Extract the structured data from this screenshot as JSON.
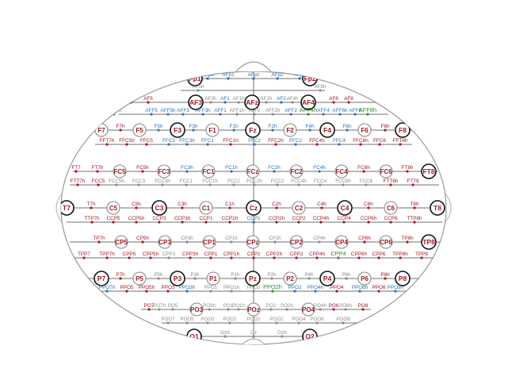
{
  "colors": {
    "primary": "#a01822",
    "secondary": "#2a73b8",
    "tertiary": "#8a8a8a",
    "highlight": "#2f8a2f",
    "line": "#707070",
    "ring": "#111111"
  },
  "rows": [
    {
      "id": "fp",
      "y": 99,
      "line": [
        236,
        396
      ],
      "e": [
        [
          "Fp1",
          246,
          "p1"
        ],
        [
          "AFp3",
          262,
          "b"
        ],
        [
          "AFp1",
          288,
          "b"
        ],
        [
          "AFpz",
          320,
          "b"
        ],
        [
          "AFp2",
          350,
          "b"
        ],
        [
          "AFp4",
          378,
          "b"
        ],
        [
          "Fp2",
          391,
          "p1"
        ]
      ]
    },
    {
      "id": "af5",
      "y": 114,
      "line": [
        228,
        410
      ],
      "e": [
        [
          "AF5h",
          250,
          "g"
        ],
        [
          "AF6h",
          404,
          "g"
        ]
      ]
    },
    {
      "id": "af",
      "y": 129,
      "line": [
        152,
        490
      ],
      "e": [
        [
          "AF7",
          165,
          "r"
        ],
        [
          "AF5",
          187,
          "r"
        ],
        [
          "AF3",
          247,
          "p1"
        ],
        [
          "AF3h",
          266,
          "g"
        ],
        [
          "AF1",
          284,
          "b"
        ],
        [
          "AF1h",
          301,
          "g"
        ],
        [
          "AFz",
          318,
          "p1"
        ],
        [
          "AF2h",
          336,
          "g"
        ],
        [
          "AF2",
          355,
          "b"
        ],
        [
          "AF4h",
          369,
          "g"
        ],
        [
          "AF4",
          389,
          "p1"
        ],
        [
          "AF6",
          421,
          "r"
        ],
        [
          "AF8",
          440,
          "r"
        ]
      ]
    },
    {
      "id": "aff",
      "y": 144,
      "line": [
        150,
        490
      ],
      "e": [
        [
          "AFF7h",
          144,
          "g"
        ],
        [
          "AFF5",
          191,
          "b"
        ],
        [
          "AFF5h",
          212,
          "b"
        ],
        [
          "AFF3",
          231,
          "b"
        ],
        [
          "AFF3h",
          256,
          "b"
        ],
        [
          "AFF1",
          278,
          "b"
        ],
        [
          "AFF1h",
          299,
          "g"
        ],
        [
          "AFFz",
          321,
          "g"
        ],
        [
          "AFF2h",
          344,
          "g"
        ],
        [
          "AFF2",
          367,
          "b"
        ],
        [
          "AFF4h",
          389,
          "h"
        ],
        [
          "AFF4",
          408,
          "b"
        ],
        [
          "AFF6h",
          429,
          "b"
        ],
        [
          "AFF6",
          448,
          "b"
        ],
        [
          "AFF8h",
          464,
          "h"
        ]
      ]
    },
    {
      "id": "f",
      "y": 164,
      "line": [
        112,
        525
      ],
      "e": [
        [
          "F7",
          128,
          "p2"
        ],
        [
          "F7h",
          152,
          "r"
        ],
        [
          "F5",
          176,
          "p2"
        ],
        [
          "F5h",
          200,
          "b"
        ],
        [
          "F3",
          224,
          "p1"
        ],
        [
          "F3h",
          244,
          "b"
        ],
        [
          "F1",
          268,
          "p2"
        ],
        [
          "F1h",
          295,
          "b"
        ],
        [
          "Fz",
          319,
          "p1"
        ],
        [
          "F2h",
          344,
          "b"
        ],
        [
          "F2",
          366,
          "p2"
        ],
        [
          "F4h",
          391,
          "b"
        ],
        [
          "F4",
          413,
          "p1"
        ],
        [
          "F6h",
          438,
          "b"
        ],
        [
          "F6",
          460,
          "p2"
        ],
        [
          "F8h",
          486,
          "r"
        ],
        [
          "F8",
          508,
          "p1"
        ]
      ]
    },
    {
      "id": "fft",
      "y": 182,
      "line": [
        120,
        520
      ],
      "e": [
        [
          "FFT7h",
          135,
          "r"
        ],
        [
          "FFC5h",
          160,
          "r"
        ],
        [
          "FFC5",
          185,
          "r"
        ],
        [
          "FFC3",
          213,
          "b"
        ],
        [
          "FFC3h",
          236,
          "b"
        ],
        [
          "FFC1",
          262,
          "b"
        ],
        [
          "FFC1h",
          291,
          "r"
        ],
        [
          "FFCz",
          321,
          "b"
        ],
        [
          "FFC2h",
          348,
          "r"
        ],
        [
          "FFC2",
          373,
          "b"
        ],
        [
          "FFC4h",
          400,
          "r"
        ],
        [
          "FFC4",
          428,
          "b"
        ],
        [
          "FFC6h",
          455,
          "r"
        ],
        [
          "FFC6",
          479,
          "r"
        ],
        [
          "FFT8h",
          505,
          "r"
        ]
      ]
    },
    {
      "id": "fc",
      "y": 216,
      "line": [
        92,
        552
      ],
      "e": [
        [
          "FT7",
          96,
          "r"
        ],
        [
          "FT7h",
          123,
          "r"
        ],
        [
          "FC5",
          151,
          "p2"
        ],
        [
          "FC5h",
          180,
          "r"
        ],
        [
          "FC3",
          207,
          "p2"
        ],
        [
          "FC3h",
          236,
          "b"
        ],
        [
          "FC1",
          263,
          "p2"
        ],
        [
          "FC1h",
          292,
          "b"
        ],
        [
          "FCz",
          319,
          "p2"
        ],
        [
          "FC2h",
          346,
          "b"
        ],
        [
          "FC2",
          374,
          "p2"
        ],
        [
          "FC4h",
          403,
          "b"
        ],
        [
          "FC4",
          431,
          "p2"
        ],
        [
          "FC6h",
          459,
          "r"
        ],
        [
          "FC6",
          487,
          "p2"
        ],
        [
          "FT8h",
          514,
          "r"
        ],
        [
          "FT8",
          541,
          "p1"
        ]
      ]
    },
    {
      "id": "fcc",
      "y": 233,
      "line": [
        88,
        554
      ],
      "e": [
        [
          "FTT7h",
          98,
          "r"
        ],
        [
          "FCC5",
          124,
          "r"
        ],
        [
          "FCC5h",
          147,
          "g"
        ],
        [
          "FCC3",
          175,
          "g"
        ],
        [
          "FCC3h",
          205,
          "g"
        ],
        [
          "FCC1",
          235,
          "g"
        ],
        [
          "FCC1h",
          265,
          "g"
        ],
        [
          "FCCz",
          295,
          "g"
        ],
        [
          "FCC2h",
          321,
          "g"
        ],
        [
          "FCC2",
          350,
          "g"
        ],
        [
          "FCC4h",
          377,
          "g"
        ],
        [
          "FCC4",
          404,
          "g"
        ],
        [
          "FCC6h",
          433,
          "g"
        ],
        [
          "FCC6",
          462,
          "g"
        ],
        [
          "FTT8h",
          493,
          "r"
        ],
        [
          "FTT8",
          521,
          "r"
        ]
      ]
    },
    {
      "id": "c",
      "y": 262,
      "line": [
        80,
        562
      ],
      "e": [
        [
          "T7",
          84,
          "p1"
        ],
        [
          "T7h",
          115,
          "r"
        ],
        [
          "C5",
          143,
          "p2"
        ],
        [
          "C5h",
          172,
          "r"
        ],
        [
          "C3",
          201,
          "p1"
        ],
        [
          "C3h",
          230,
          "r"
        ],
        [
          "C1",
          260,
          "p2"
        ],
        [
          "C1h",
          290,
          "r"
        ],
        [
          "Cz",
          320,
          "p1"
        ],
        [
          "C2h",
          349,
          "r"
        ],
        [
          "C2",
          377,
          "p2"
        ],
        [
          "C4h",
          406,
          "r"
        ],
        [
          "C4",
          435,
          "p1"
        ],
        [
          "C6h",
          465,
          "r"
        ],
        [
          "C6",
          493,
          "p2"
        ],
        [
          "T8h",
          523,
          "r"
        ],
        [
          "T8",
          552,
          "p1"
        ]
      ]
    },
    {
      "id": "ccp",
      "y": 280,
      "line": [
        84,
        558
      ],
      "e": [
        [
          "TTP7h",
          116,
          "r"
        ],
        [
          "CCP5",
          143,
          "r"
        ],
        [
          "CCP5h",
          172,
          "r"
        ],
        [
          "CCP3",
          201,
          "r"
        ],
        [
          "CCP3h",
          230,
          "r"
        ],
        [
          "CCP1",
          260,
          "r"
        ],
        [
          "CCP1h",
          290,
          "r"
        ],
        [
          "CCPz",
          320,
          "b"
        ],
        [
          "CCP2h",
          349,
          "r"
        ],
        [
          "CCP2",
          377,
          "r"
        ],
        [
          "CCP4h",
          405,
          "r"
        ],
        [
          "CCP4",
          434,
          "r"
        ],
        [
          "CCP6h",
          465,
          "r"
        ],
        [
          "CCP6",
          493,
          "r"
        ],
        [
          "TTP8h",
          523,
          "r"
        ]
      ]
    },
    {
      "id": "cp",
      "y": 305,
      "line": [
        88,
        556
      ],
      "e": [
        [
          "TP7h",
          125,
          "r"
        ],
        [
          "CP5",
          153,
          "p2"
        ],
        [
          "CP5h",
          180,
          "r"
        ],
        [
          "CP3",
          208,
          "p2"
        ],
        [
          "CP3h",
          236,
          "g"
        ],
        [
          "CP1",
          264,
          "p2"
        ],
        [
          "CP1h",
          292,
          "g"
        ],
        [
          "CPz",
          319,
          "p2"
        ],
        [
          "CP2h",
          347,
          "g"
        ],
        [
          "CP2",
          374,
          "p2"
        ],
        [
          "CP4h",
          403,
          "g"
        ],
        [
          "CP4",
          431,
          "p2"
        ],
        [
          "CP6h",
          460,
          "r"
        ],
        [
          "CP6",
          487,
          "p2"
        ],
        [
          "TP8h",
          514,
          "r"
        ],
        [
          "TP8",
          541,
          "p1"
        ]
      ]
    },
    {
      "id": "cpp",
      "y": 325,
      "line": [
        92,
        552
      ],
      "e": [
        [
          "TPP7",
          106,
          "r"
        ],
        [
          "TPP7h",
          135,
          "r"
        ],
        [
          "CPP5",
          163,
          "r"
        ],
        [
          "CPP5h",
          190,
          "r"
        ],
        [
          "CPP3",
          213,
          "g"
        ],
        [
          "CPP3h",
          240,
          "r"
        ],
        [
          "CPP1",
          266,
          "r"
        ],
        [
          "CPP1h",
          292,
          "r"
        ],
        [
          "CPPz",
          320,
          "r"
        ],
        [
          "CPP2h",
          346,
          "r"
        ],
        [
          "CPP2",
          374,
          "r"
        ],
        [
          "CPP4h",
          400,
          "r"
        ],
        [
          "CPP4",
          427,
          "h"
        ],
        [
          "CPP6h",
          453,
          "r"
        ],
        [
          "CPP6",
          478,
          "r"
        ],
        [
          "TPP8h",
          505,
          "r"
        ],
        [
          "TPP8",
          532,
          "r"
        ]
      ]
    },
    {
      "id": "p",
      "y": 351,
      "line": [
        110,
        530
      ],
      "e": [
        [
          "P7",
          128,
          "p1"
        ],
        [
          "P7h",
          152,
          "r"
        ],
        [
          "P5",
          176,
          "p2"
        ],
        [
          "P5h",
          200,
          "g"
        ],
        [
          "P3",
          224,
          "p1"
        ],
        [
          "P3h",
          246,
          "g"
        ],
        [
          "P1",
          269,
          "p2"
        ],
        [
          "P1h",
          297,
          "g"
        ],
        [
          "Pz",
          319,
          "p1"
        ],
        [
          "P2h",
          343,
          "g"
        ],
        [
          "P2",
          366,
          "p2"
        ],
        [
          "P4h",
          390,
          "g"
        ],
        [
          "P4",
          413,
          "p1"
        ],
        [
          "P6h",
          437,
          "g"
        ],
        [
          "P6",
          460,
          "p2"
        ],
        [
          "P8h",
          486,
          "r"
        ],
        [
          "P8",
          508,
          "p1"
        ]
      ]
    },
    {
      "id": "ppo",
      "y": 367,
      "line": [
        118,
        518
      ],
      "e": [
        [
          "PPO7h",
          135,
          "b"
        ],
        [
          "PPO5",
          160,
          "r"
        ],
        [
          "PPO5h",
          185,
          "r"
        ],
        [
          "PPO3",
          212,
          "r"
        ],
        [
          "PPO3h",
          236,
          "b"
        ],
        [
          "PPO1",
          266,
          "g"
        ],
        [
          "PPO1h",
          292,
          "g"
        ],
        [
          "PPOz",
          320,
          "g"
        ],
        [
          "PPO2h",
          344,
          "h"
        ],
        [
          "PPO2",
          372,
          "b"
        ],
        [
          "PPO4h",
          398,
          "b"
        ],
        [
          "PPO4",
          425,
          "r"
        ],
        [
          "PPO6h",
          454,
          "b"
        ],
        [
          "PPO6",
          478,
          "r"
        ],
        [
          "PPO8h",
          499,
          "b"
        ]
      ]
    },
    {
      "id": "po",
      "y": 390,
      "line": [
        178,
        468
      ],
      "e": [
        [
          "PO7",
          188,
          "r"
        ],
        [
          "PO7h",
          201,
          "g"
        ],
        [
          "PO5",
          218,
          "g"
        ],
        [
          "PO3",
          248,
          "p2"
        ],
        [
          "PO3h",
          264,
          "g"
        ],
        [
          "PO1",
          288,
          "g"
        ],
        [
          "PO1h",
          301,
          "g"
        ],
        [
          "POz",
          320,
          "p2"
        ],
        [
          "PO2",
          342,
          "g"
        ],
        [
          "PO2h",
          362,
          "g"
        ],
        [
          "PO4",
          389,
          "p2"
        ],
        [
          "PO4h",
          404,
          "g"
        ],
        [
          "PO6",
          421,
          "r"
        ],
        [
          "PO6h",
          436,
          "g"
        ],
        [
          "PO8",
          458,
          "r"
        ]
      ]
    },
    {
      "id": "poo",
      "y": 407,
      "line": [
        204,
        452
      ],
      "e": [
        [
          "POO7",
          212,
          "g"
        ],
        [
          "POO5",
          236,
          "g"
        ],
        [
          "POO3",
          262,
          "g"
        ],
        [
          "POO1",
          290,
          "g"
        ],
        [
          "POOz",
          320,
          "g"
        ],
        [
          "POO2",
          349,
          "g"
        ],
        [
          "POO4",
          377,
          "g"
        ],
        [
          "POO6",
          400,
          "g"
        ],
        [
          "POO8",
          433,
          "g"
        ]
      ]
    },
    {
      "id": "o",
      "y": 424,
      "line": [
        236,
        396
      ],
      "e": [
        [
          "O1",
          245,
          "p1"
        ],
        [
          "O1h",
          284,
          "g"
        ],
        [
          "Oz",
          320,
          "g"
        ],
        [
          "O2h",
          356,
          "g"
        ],
        [
          "O2",
          391,
          "p1"
        ]
      ]
    }
  ]
}
